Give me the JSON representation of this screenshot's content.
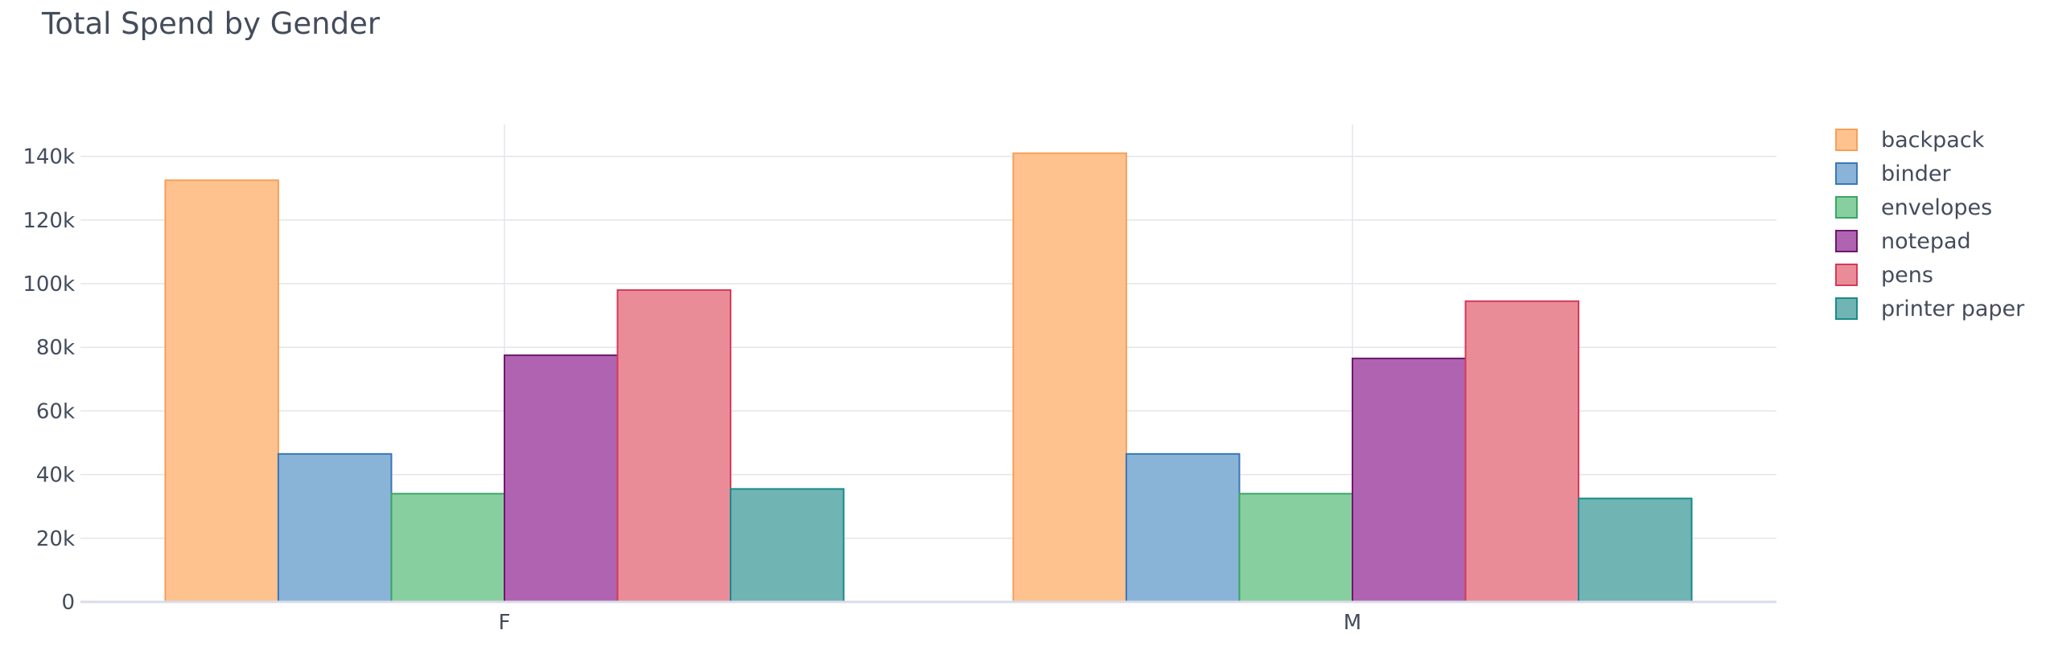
{
  "chart_data": {
    "type": "bar",
    "title": "Total Spend by Gender",
    "xlabel": "",
    "ylabel": "",
    "categories": [
      "F",
      "M"
    ],
    "ylim": [
      0,
      150000
    ],
    "yticks": [
      0,
      20000,
      40000,
      60000,
      80000,
      100000,
      120000,
      140000
    ],
    "ytick_labels": [
      "0",
      "20k",
      "40k",
      "60k",
      "80k",
      "100k",
      "120k",
      "140k"
    ],
    "grid": true,
    "legend_position": "right",
    "series": [
      {
        "name": "backpack",
        "values": [
          132500,
          141000
        ],
        "fill": "#fec28f",
        "stroke": "#f5a05a"
      },
      {
        "name": "binder",
        "values": [
          46500,
          46500
        ],
        "fill": "#8ab3d8",
        "stroke": "#3a78b8"
      },
      {
        "name": "envelopes",
        "values": [
          34000,
          34000
        ],
        "fill": "#88cfa0",
        "stroke": "#3aa564"
      },
      {
        "name": "notepad",
        "values": [
          77500,
          76500
        ],
        "fill": "#b063b0",
        "stroke": "#6b1a6b"
      },
      {
        "name": "pens",
        "values": [
          98000,
          94500
        ],
        "fill": "#ea8c98",
        "stroke": "#d43a5a"
      },
      {
        "name": "printer paper",
        "values": [
          35500,
          32500
        ],
        "fill": "#70b4b4",
        "stroke": "#1a8a8a"
      }
    ]
  }
}
